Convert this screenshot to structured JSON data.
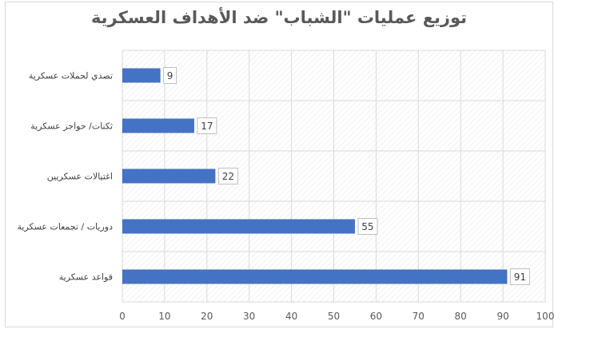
{
  "chart_data": {
    "type": "bar",
    "orientation": "horizontal",
    "title": "توزيع عمليات \"الشباب\" ضد الأهداف العسكرية",
    "categories": [
      "تصدي لحملات عسكرية",
      "ثكنات/ حواجز عسكرية",
      "اغتيالات عسكريين",
      "دوريات / تجمعات عسكرية",
      "قواعد عسكرية"
    ],
    "values": [
      9,
      17,
      22,
      55,
      91
    ],
    "xlim": [
      0,
      100
    ],
    "x_ticks": [
      0,
      10,
      20,
      30,
      40,
      50,
      60,
      70,
      80,
      90,
      100
    ],
    "grid": true,
    "plot_background": "diagonal-hatch",
    "colors": {
      "bar": "#4472c4",
      "grid": "#d9d9d9",
      "hatch": "#e3e3e3"
    }
  }
}
